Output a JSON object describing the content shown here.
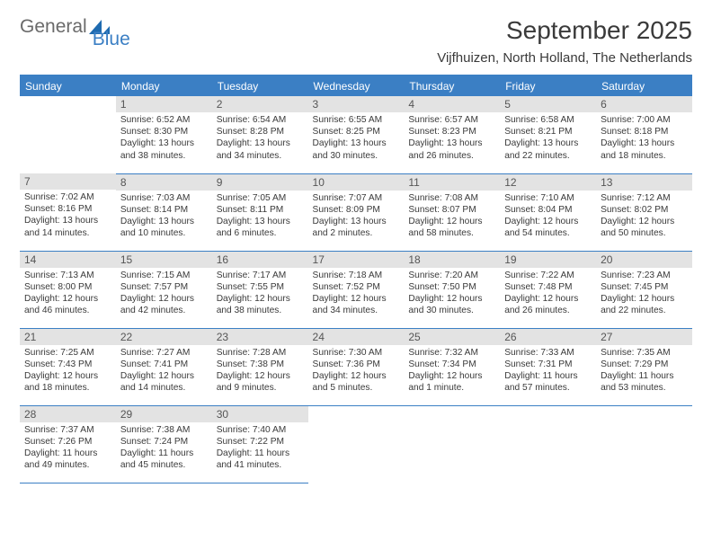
{
  "logo": {
    "text1": "General",
    "text2": "Blue",
    "mark_color": "#1f6bb0"
  },
  "title": "September 2025",
  "location": "Vijfhuizen, North Holland, The Netherlands",
  "colors": {
    "accent": "#3b7fc4",
    "daynum_bg": "#e3e3e3",
    "text": "#3a3a3a"
  },
  "day_headers": [
    "Sunday",
    "Monday",
    "Tuesday",
    "Wednesday",
    "Thursday",
    "Friday",
    "Saturday"
  ],
  "weeks": [
    [
      null,
      {
        "n": "1",
        "sunrise": "6:52 AM",
        "sunset": "8:30 PM",
        "daylight": "13 hours and 38 minutes."
      },
      {
        "n": "2",
        "sunrise": "6:54 AM",
        "sunset": "8:28 PM",
        "daylight": "13 hours and 34 minutes."
      },
      {
        "n": "3",
        "sunrise": "6:55 AM",
        "sunset": "8:25 PM",
        "daylight": "13 hours and 30 minutes."
      },
      {
        "n": "4",
        "sunrise": "6:57 AM",
        "sunset": "8:23 PM",
        "daylight": "13 hours and 26 minutes."
      },
      {
        "n": "5",
        "sunrise": "6:58 AM",
        "sunset": "8:21 PM",
        "daylight": "13 hours and 22 minutes."
      },
      {
        "n": "6",
        "sunrise": "7:00 AM",
        "sunset": "8:18 PM",
        "daylight": "13 hours and 18 minutes."
      }
    ],
    [
      {
        "n": "7",
        "sunrise": "7:02 AM",
        "sunset": "8:16 PM",
        "daylight": "13 hours and 14 minutes."
      },
      {
        "n": "8",
        "sunrise": "7:03 AM",
        "sunset": "8:14 PM",
        "daylight": "13 hours and 10 minutes."
      },
      {
        "n": "9",
        "sunrise": "7:05 AM",
        "sunset": "8:11 PM",
        "daylight": "13 hours and 6 minutes."
      },
      {
        "n": "10",
        "sunrise": "7:07 AM",
        "sunset": "8:09 PM",
        "daylight": "13 hours and 2 minutes."
      },
      {
        "n": "11",
        "sunrise": "7:08 AM",
        "sunset": "8:07 PM",
        "daylight": "12 hours and 58 minutes."
      },
      {
        "n": "12",
        "sunrise": "7:10 AM",
        "sunset": "8:04 PM",
        "daylight": "12 hours and 54 minutes."
      },
      {
        "n": "13",
        "sunrise": "7:12 AM",
        "sunset": "8:02 PM",
        "daylight": "12 hours and 50 minutes."
      }
    ],
    [
      {
        "n": "14",
        "sunrise": "7:13 AM",
        "sunset": "8:00 PM",
        "daylight": "12 hours and 46 minutes."
      },
      {
        "n": "15",
        "sunrise": "7:15 AM",
        "sunset": "7:57 PM",
        "daylight": "12 hours and 42 minutes."
      },
      {
        "n": "16",
        "sunrise": "7:17 AM",
        "sunset": "7:55 PM",
        "daylight": "12 hours and 38 minutes."
      },
      {
        "n": "17",
        "sunrise": "7:18 AM",
        "sunset": "7:52 PM",
        "daylight": "12 hours and 34 minutes."
      },
      {
        "n": "18",
        "sunrise": "7:20 AM",
        "sunset": "7:50 PM",
        "daylight": "12 hours and 30 minutes."
      },
      {
        "n": "19",
        "sunrise": "7:22 AM",
        "sunset": "7:48 PM",
        "daylight": "12 hours and 26 minutes."
      },
      {
        "n": "20",
        "sunrise": "7:23 AM",
        "sunset": "7:45 PM",
        "daylight": "12 hours and 22 minutes."
      }
    ],
    [
      {
        "n": "21",
        "sunrise": "7:25 AM",
        "sunset": "7:43 PM",
        "daylight": "12 hours and 18 minutes."
      },
      {
        "n": "22",
        "sunrise": "7:27 AM",
        "sunset": "7:41 PM",
        "daylight": "12 hours and 14 minutes."
      },
      {
        "n": "23",
        "sunrise": "7:28 AM",
        "sunset": "7:38 PM",
        "daylight": "12 hours and 9 minutes."
      },
      {
        "n": "24",
        "sunrise": "7:30 AM",
        "sunset": "7:36 PM",
        "daylight": "12 hours and 5 minutes."
      },
      {
        "n": "25",
        "sunrise": "7:32 AM",
        "sunset": "7:34 PM",
        "daylight": "12 hours and 1 minute."
      },
      {
        "n": "26",
        "sunrise": "7:33 AM",
        "sunset": "7:31 PM",
        "daylight": "11 hours and 57 minutes."
      },
      {
        "n": "27",
        "sunrise": "7:35 AM",
        "sunset": "7:29 PM",
        "daylight": "11 hours and 53 minutes."
      }
    ],
    [
      {
        "n": "28",
        "sunrise": "7:37 AM",
        "sunset": "7:26 PM",
        "daylight": "11 hours and 49 minutes."
      },
      {
        "n": "29",
        "sunrise": "7:38 AM",
        "sunset": "7:24 PM",
        "daylight": "11 hours and 45 minutes."
      },
      {
        "n": "30",
        "sunrise": "7:40 AM",
        "sunset": "7:22 PM",
        "daylight": "11 hours and 41 minutes."
      },
      null,
      null,
      null,
      null
    ]
  ],
  "labels": {
    "sunrise": "Sunrise:",
    "sunset": "Sunset:",
    "daylight": "Daylight:"
  }
}
